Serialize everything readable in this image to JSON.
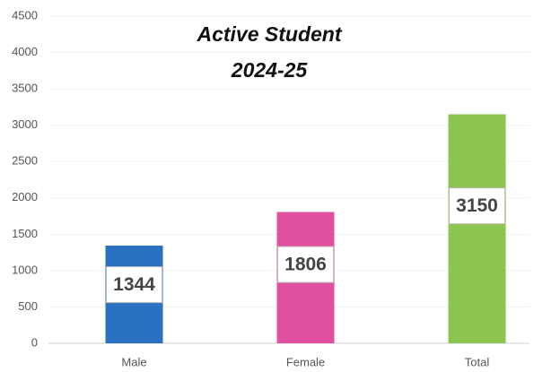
{
  "chart_data": {
    "type": "bar",
    "title": "Active Student",
    "subtitle": "2024-25",
    "categories": [
      "Male",
      "Female",
      "Total"
    ],
    "values": [
      1344,
      1806,
      3150
    ],
    "colors": [
      "#2a72c1",
      "#e0509f",
      "#8cc64e"
    ],
    "ylim": [
      0,
      4500
    ],
    "yticks": [
      0,
      500,
      1000,
      1500,
      2000,
      2500,
      3000,
      3500,
      4000,
      4500
    ],
    "grid": true
  }
}
